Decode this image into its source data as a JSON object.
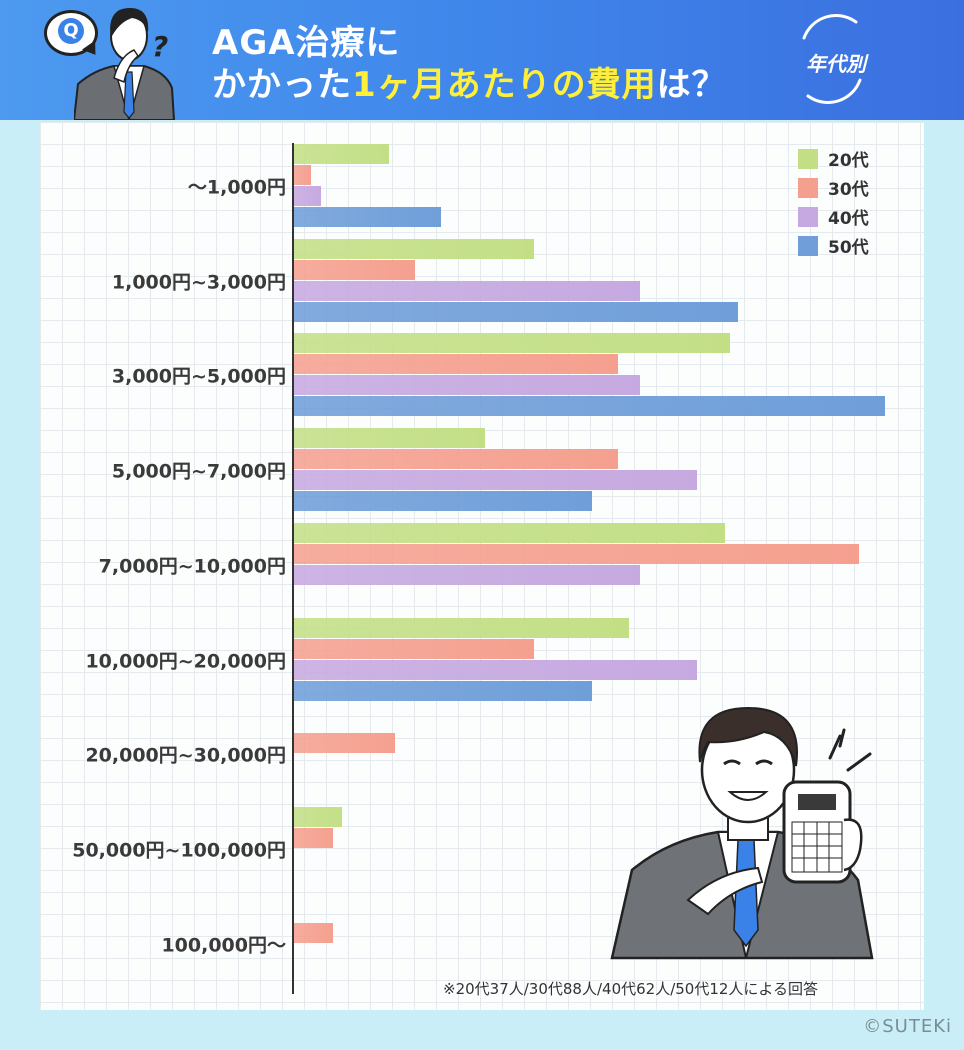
{
  "header": {
    "q_badge": "Q",
    "question_mark": "?",
    "title_line1": "AGA治療に",
    "title_line2_pre": "かかった",
    "title_line2_highlight": "1ヶ月あたりの費用",
    "title_line2_post": "は？",
    "badge": "年代別"
  },
  "chart_data": {
    "type": "bar",
    "orientation": "horizontal",
    "categories": [
      "〜1,000円",
      "1,000円~3,000円",
      "3,000円~5,000円",
      "5,000円~7,000円",
      "7,000円~10,000円",
      "10,000円~20,000円",
      "20,000円~30,000円",
      "50,000円~100,000円",
      "100,000円〜"
    ],
    "series": [
      {
        "name": "20代",
        "color": "#c3df86",
        "values": [
          9.7,
          24.5,
          44.5,
          19.5,
          44.0,
          34.2,
          0,
          4.9,
          0
        ]
      },
      {
        "name": "30代",
        "color": "#f5a08f",
        "values": [
          1.7,
          12.3,
          33.0,
          33.0,
          57.6,
          24.5,
          10.3,
          4.0,
          4.0
        ]
      },
      {
        "name": "40代",
        "color": "#c6a9e0",
        "values": [
          2.8,
          35.3,
          35.3,
          41.1,
          35.3,
          41.1,
          0,
          0,
          0
        ]
      },
      {
        "name": "50代",
        "color": "#6f9ed9",
        "values": [
          15.0,
          45.3,
          60.3,
          30.4,
          0,
          30.4,
          0,
          0,
          0
        ]
      }
    ],
    "xlim": [
      0,
      61
    ],
    "legend_position": "top-right",
    "grid": true,
    "note": "※20代37人/30代88人/40代62人/50代12人による回答"
  },
  "copyright": "©SUTEKi"
}
